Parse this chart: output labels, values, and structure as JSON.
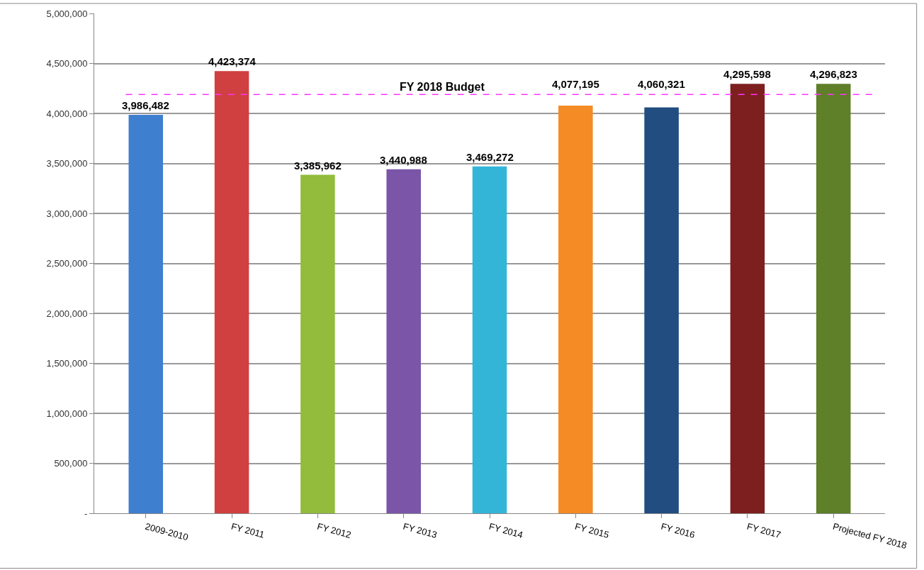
{
  "chart_data": {
    "type": "bar",
    "categories": [
      "2009-2010",
      "FY 2011",
      "FY 2012",
      "FY 2013",
      "FY 2014",
      "FY 2015",
      "FY 2016",
      "FY 2017",
      "Projected FY 2018"
    ],
    "values": [
      3986482,
      4423374,
      3385962,
      3440988,
      3469272,
      4077195,
      4060321,
      4295598,
      4296823
    ],
    "colors": [
      "#3f7fd0",
      "#d04040",
      "#93bb3c",
      "#7a55a8",
      "#33b5d8",
      "#f48b25",
      "#214d80",
      "#7d1f1f",
      "#5f7f28"
    ],
    "value_labels": [
      "3,986,482",
      "4,423,374",
      "3,385,962",
      "3,440,988",
      "3,469,272",
      "4,077,195",
      "4,060,321",
      "4,295,598",
      "4,296,823"
    ],
    "ylim": [
      0,
      5000000
    ],
    "yticks": [
      {
        "value": 0,
        "label": "-"
      },
      {
        "value": 500000,
        "label": "500,000"
      },
      {
        "value": 1000000,
        "label": "1,000,000"
      },
      {
        "value": 1500000,
        "label": "1,500,000"
      },
      {
        "value": 2000000,
        "label": "2,000,000"
      },
      {
        "value": 2500000,
        "label": "2,500,000"
      },
      {
        "value": 3000000,
        "label": "3,000,000"
      },
      {
        "value": 3500000,
        "label": "3,500,000"
      },
      {
        "value": 4000000,
        "label": "4,000,000"
      },
      {
        "value": 4500000,
        "label": "4,500,000"
      },
      {
        "value": 5000000,
        "label": "5,000,000"
      }
    ],
    "ref_lines": [
      {
        "axis": "y",
        "value": 4190000,
        "label": "FY 2018 Budget",
        "color": "#ff33ff",
        "line_style": "dashed"
      }
    ],
    "grid": "y"
  }
}
